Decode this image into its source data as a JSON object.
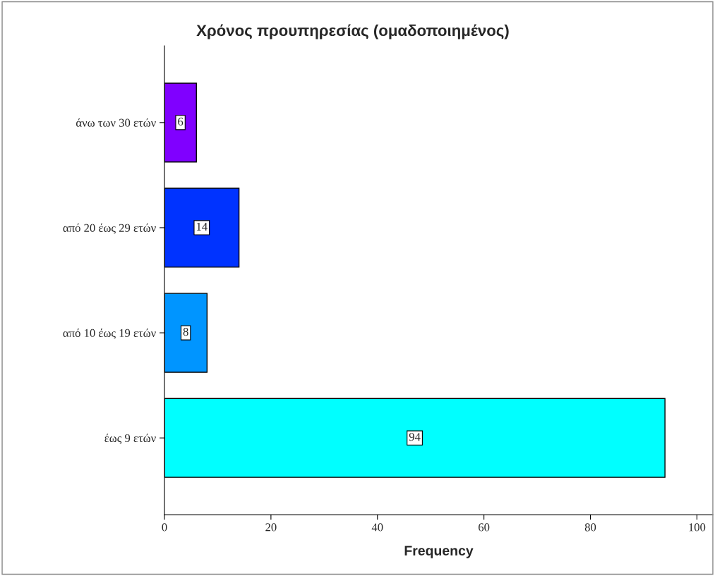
{
  "chart_data": {
    "type": "bar",
    "orientation": "horizontal",
    "title": "Χρόνος προυπηρεσίας (ομαδοποιημένος)",
    "xlabel": "Frequency",
    "categories": [
      "άνω των 30 ετών",
      "από 20 έως 29 ετών",
      "από 10 έως 19 ετών",
      "έως 9 ετών"
    ],
    "values": [
      6,
      14,
      8,
      94
    ],
    "colors": [
      "#8000ff",
      "#0033ff",
      "#0095ff",
      "#00ffff"
    ],
    "xlim": [
      0,
      103
    ],
    "xticks": [
      0,
      20,
      40,
      60,
      80,
      100
    ],
    "grid": false,
    "data_labels": true
  }
}
